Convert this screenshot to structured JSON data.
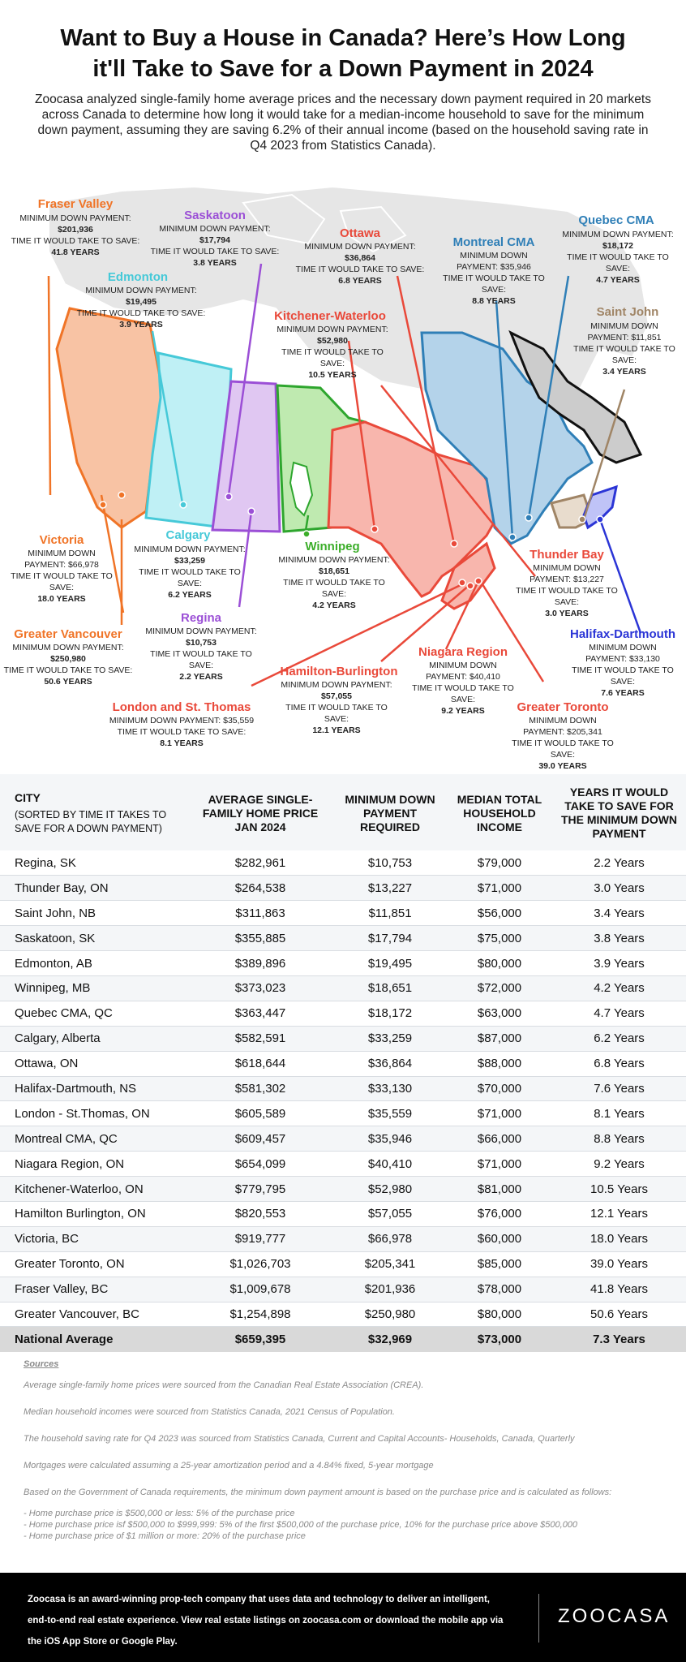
{
  "title_line1": "Want to Buy a House in Canada? Here’s How Long",
  "title_line2": "it'll Take to Save for a Down Payment in 2024",
  "intro": "Zoocasa analyzed single-family home average prices and the necessary down payment required in 20 markets across Canada to determine how long it would take for a median-income household to save for the minimum down payment, assuming they are saving 6.2% of their annual income (based on the household saving rate in Q4 2023 from Statistics Canada).",
  "colors": {
    "fraser": "#f07427",
    "edmonton": "#46c9d8",
    "saskatoon": "#9b4fd6",
    "ottawa": "#e9493a",
    "quebec": "#2f7fb7",
    "montreal": "#2f7fb7",
    "saintjohn": "#a08566",
    "kitchener": "#2ea62e",
    "winnipeg": "#3cae2a",
    "halifax": "#2b35d6",
    "regina": "#9b4fd6",
    "calgary": "#46c9d8"
  },
  "map_labels": {
    "fraser": {
      "name": "Fraser Valley",
      "l1": "MINIMUM DOWN PAYMENT:",
      "l2": "$201,936",
      "l3": "TIME IT WOULD TAKE TO SAVE:",
      "l4": "41.8 YEARS"
    },
    "saskatoon": {
      "name": "Saskatoon",
      "l1": "MINIMUM DOWN PAYMENT:",
      "l2": "$17,794",
      "l3": "TIME IT WOULD TAKE TO SAVE:",
      "l4": "3.8 YEARS"
    },
    "edmonton": {
      "name": "Edmonton",
      "l1": "MINIMUM DOWN PAYMENT:",
      "l2": "$19,495",
      "l3": "TIME IT WOULD TAKE TO SAVE:",
      "l4": "3.9 YEARS"
    },
    "ottawa": {
      "name": "Ottawa",
      "l1": "MINIMUM DOWN PAYMENT:",
      "l2": "$36,864",
      "l3": "TIME IT WOULD TAKE TO SAVE:",
      "l4": "6.8 YEARS"
    },
    "montreal": {
      "name": "Montreal CMA",
      "l1": "MINIMUM DOWN",
      "l2": "PAYMENT: $35,946",
      "l3": "TIME IT WOULD TAKE TO",
      "l4": "SAVE:",
      "l5": "8.8 YEARS"
    },
    "quebec": {
      "name": "Quebec CMA",
      "l1": "MINIMUM DOWN PAYMENT:",
      "l2": "$18,172",
      "l3": "TIME IT WOULD TAKE TO",
      "l4": "SAVE:",
      "l5": "4.7 YEARS"
    },
    "kitchener": {
      "name": "Kitchener-Waterloo",
      "l1": "MINIMUM DOWN PAYMENT:",
      "l2": "$52,980",
      "l3": "TIME IT WOULD TAKE TO",
      "l4": "SAVE:",
      "l5": "10.5 YEARS"
    },
    "saintjohn": {
      "name": "Saint John",
      "l1": "MINIMUM DOWN",
      "l2": "PAYMENT: $11,851",
      "l3": "TIME IT WOULD TAKE TO",
      "l4": "SAVE:",
      "l5": "3.4 YEARS"
    },
    "victoria": {
      "name": "Victoria",
      "l1": "MINIMUM DOWN",
      "l2": "PAYMENT: $66,978",
      "l3": "TIME IT WOULD TAKE TO",
      "l4": "SAVE:",
      "l5": "18.0 YEARS"
    },
    "calgary": {
      "name": "Calgary",
      "l1": "MINIMUM DOWN PAYMENT:",
      "l2": "$33,259",
      "l3": "TIME IT WOULD TAKE TO",
      "l4": "SAVE:",
      "l5": "6.2 YEARS"
    },
    "winnipeg": {
      "name": "Winnipeg",
      "l1": "MINIMUM DOWN PAYMENT:",
      "l2": "$18,651",
      "l3": "TIME IT WOULD TAKE TO",
      "l4": "SAVE:",
      "l5": "4.2 YEARS"
    },
    "thunderbay": {
      "name": "Thunder Bay",
      "l1": "MINIMUM DOWN",
      "l2": "PAYMENT: $13,227",
      "l3": "TIME IT WOULD TAKE TO",
      "l4": "SAVE:",
      "l5": "3.0 YEARS"
    },
    "vancouver": {
      "name": "Greater Vancouver",
      "l1": "MINIMUM DOWN PAYMENT:",
      "l2": "$250,980",
      "l3": "TIME IT WOULD TAKE TO SAVE:",
      "l4": "50.6 YEARS"
    },
    "regina": {
      "name": "Regina",
      "l1": "MINIMUM DOWN PAYMENT:",
      "l2": "$10,753",
      "l3": "TIME IT WOULD TAKE TO",
      "l4": "SAVE:",
      "l5": "2.2 YEARS"
    },
    "halifax": {
      "name": "Halifax-Dartmouth",
      "l1": "MINIMUM DOWN",
      "l2": "PAYMENT: $33,130",
      "l3": "TIME IT WOULD TAKE TO",
      "l4": "SAVE:",
      "l5": "7.6 YEARS"
    },
    "niagara": {
      "name": "Niagara Region",
      "l1": "MINIMUM DOWN",
      "l2": "PAYMENT: $40,410",
      "l3": "TIME IT WOULD TAKE TO",
      "l4": "SAVE:",
      "l5": "9.2 YEARS"
    },
    "hamilton": {
      "name": "Hamilton-Burlington",
      "l1": "MINIMUM DOWN PAYMENT:",
      "l2": "$57,055",
      "l3": "TIME IT WOULD TAKE TO",
      "l4": "SAVE:",
      "l5": "12.1 YEARS"
    },
    "london": {
      "name": "London and St. Thomas",
      "l1": "MINIMUM DOWN PAYMENT: $35,559",
      "l2": "TIME IT WOULD TAKE TO SAVE:",
      "l3": "8.1 YEARS"
    },
    "toronto": {
      "name": "Greater Toronto",
      "l1": "MINIMUM DOWN",
      "l2": "PAYMENT: $205,341",
      "l3": "TIME IT WOULD TAKE TO",
      "l4": "SAVE:",
      "l5": "39.0 YEARS"
    }
  },
  "chart_data": {
    "type": "table",
    "columns": [
      "CITY",
      "(SORTED BY TIME IT TAKES TO SAVE FOR A DOWN PAYMENT)",
      "AVERAGE SINGLE-FAMILY HOME PRICE JAN 2024",
      "MINIMUM DOWN PAYMENT REQUIRED",
      "MEDIAN TOTAL HOUSEHOLD INCOME",
      "YEARS IT WOULD TAKE TO SAVE FOR THE MINIMUM DOWN PAYMENT"
    ],
    "rows": [
      [
        "Regina, SK",
        "$282,961",
        "$10,753",
        "$79,000",
        "2.2 Years"
      ],
      [
        "Thunder Bay, ON",
        "$264,538",
        "$13,227",
        "$71,000",
        "3.0 Years"
      ],
      [
        "Saint John, NB",
        "$311,863",
        "$11,851",
        "$56,000",
        "3.4 Years"
      ],
      [
        "Saskatoon, SK",
        "$355,885",
        "$17,794",
        "$75,000",
        "3.8 Years"
      ],
      [
        "Edmonton, AB",
        "$389,896",
        "$19,495",
        "$80,000",
        "3.9 Years"
      ],
      [
        "Winnipeg, MB",
        "$373,023",
        "$18,651",
        "$72,000",
        "4.2 Years"
      ],
      [
        "Quebec CMA, QC",
        "$363,447",
        "$18,172",
        "$63,000",
        "4.7 Years"
      ],
      [
        "Calgary, Alberta",
        "$582,591",
        "$33,259",
        "$87,000",
        "6.2 Years"
      ],
      [
        "Ottawa, ON",
        "$618,644",
        "$36,864",
        "$88,000",
        "6.8 Years"
      ],
      [
        "Halifax-Dartmouth, NS",
        "$581,302",
        "$33,130",
        "$70,000",
        "7.6 Years"
      ],
      [
        "London - St.Thomas, ON",
        "$605,589",
        "$35,559",
        "$71,000",
        "8.1 Years"
      ],
      [
        "Montreal CMA, QC",
        "$609,457",
        "$35,946",
        "$66,000",
        "8.8 Years"
      ],
      [
        "Niagara Region, ON",
        "$654,099",
        "$40,410",
        "$71,000",
        "9.2 Years"
      ],
      [
        "Kitchener-Waterloo, ON",
        "$779,795",
        "$52,980",
        "$81,000",
        "10.5 Years"
      ],
      [
        "Hamilton Burlington, ON",
        "$820,553",
        "$57,055",
        "$76,000",
        "12.1 Years"
      ],
      [
        "Victoria, BC",
        "$919,777",
        "$66,978",
        "$60,000",
        "18.0 Years"
      ],
      [
        "Greater Toronto, ON",
        "$1,026,703",
        "$205,341",
        "$85,000",
        "39.0 Years"
      ],
      [
        "Fraser Valley, BC",
        "$1,009,678",
        "$201,936",
        "$78,000",
        "41.8 Years"
      ],
      [
        "Greater Vancouver, BC",
        "$1,254,898",
        "$250,980",
        "$80,000",
        "50.6 Years"
      ]
    ],
    "average_row": [
      "National Average",
      "$659,395",
      "$32,969",
      "$73,000",
      "7.3 Years"
    ]
  },
  "sources": {
    "heading": "Sources",
    "s1": "Average single-family home prices were sourced from the Canadian Real Estate Association (CREA).",
    "s2": "Median household incomes were sourced from Statistics Canada, 2021 Census of Population.",
    "s3": "The household saving rate for Q4 2023 was sourced from Statistics Canada, Current and Capital Accounts- Households, Canada, Quarterly",
    "s4": "Mortgages were calculated assuming a 25-year amortization period and a 4.84% fixed, 5-year mortgage",
    "s5": "Based on the Government of Canada requirements, the minimum down payment amount is based on the purchase price and is calculated as follows:",
    "b1": "- Home purchase price is $500,000 or less: 5% of the purchase price",
    "b2": "- Home purchase price isf $500,000 to $999,999: 5% of the first $500,000 of the purchase price, 10% for the purchase price above $500,000",
    "b3": "- Home purchase price of $1 million or more: 20% of the purchase price"
  },
  "footer": {
    "l1": "Zoocasa is an award-winning prop-tech company that uses data and technology to deliver an intelligent,",
    "l2": "end-to-end real estate experience. View real estate listings on zoocasa.com or download the mobile app via",
    "l3": "the iOS App Store or Google Play.",
    "logo": "ZOOCASA"
  }
}
